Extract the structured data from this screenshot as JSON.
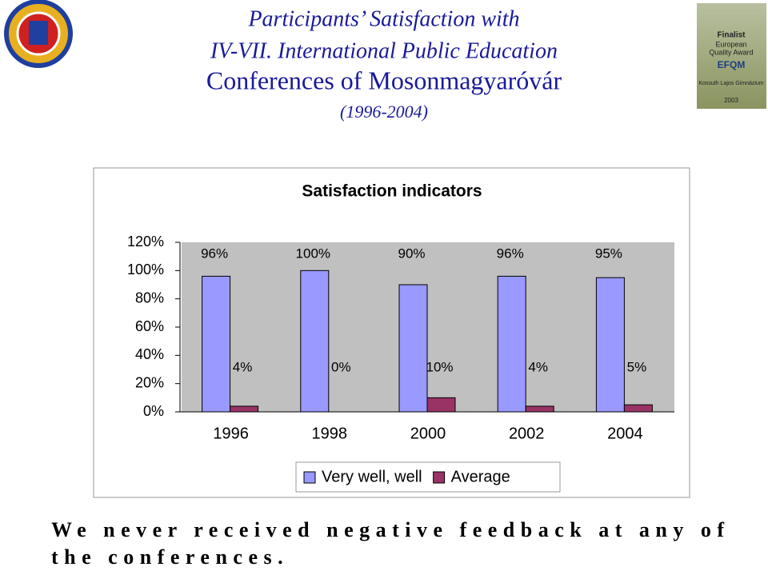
{
  "header": {
    "title_lines": [
      "Participants’ Satisfaction with",
      "IV-VII. International Public Education",
      "Conferences of Mosonmagyaróvár",
      "(1996-2004)"
    ]
  },
  "badge": {
    "lines": [
      "Finalist",
      "European",
      "Quality Award",
      "EFQM",
      "Kossuth Lajos Gimnázium",
      "2003"
    ]
  },
  "chart_data": {
    "type": "bar",
    "title": "Satisfaction indicators",
    "categories": [
      "1996",
      "1998",
      "2000",
      "2002",
      "2004"
    ],
    "series": [
      {
        "name": "Very well, well",
        "color": "#9999ff",
        "values": [
          96,
          100,
          90,
          96,
          95
        ],
        "value_labels": [
          "96%",
          "100%",
          "90%",
          "96%",
          "95%"
        ]
      },
      {
        "name": "Average",
        "color": "#993366",
        "values": [
          4,
          0,
          10,
          4,
          5
        ],
        "value_labels": [
          "4%",
          "0%",
          "10%",
          "4%",
          "5%"
        ]
      }
    ],
    "ylim": [
      0,
      120
    ],
    "yticks": [
      {
        "value": 0,
        "label": "0%"
      },
      {
        "value": 20,
        "label": "20%"
      },
      {
        "value": 40,
        "label": "40%"
      },
      {
        "value": 60,
        "label": "60%"
      },
      {
        "value": 80,
        "label": "80%"
      },
      {
        "value": 100,
        "label": "100%"
      },
      {
        "value": 120,
        "label": "120%"
      }
    ],
    "grid": false,
    "legend": "bottom"
  },
  "footer": "We never received negative feedback at any of the conferences."
}
